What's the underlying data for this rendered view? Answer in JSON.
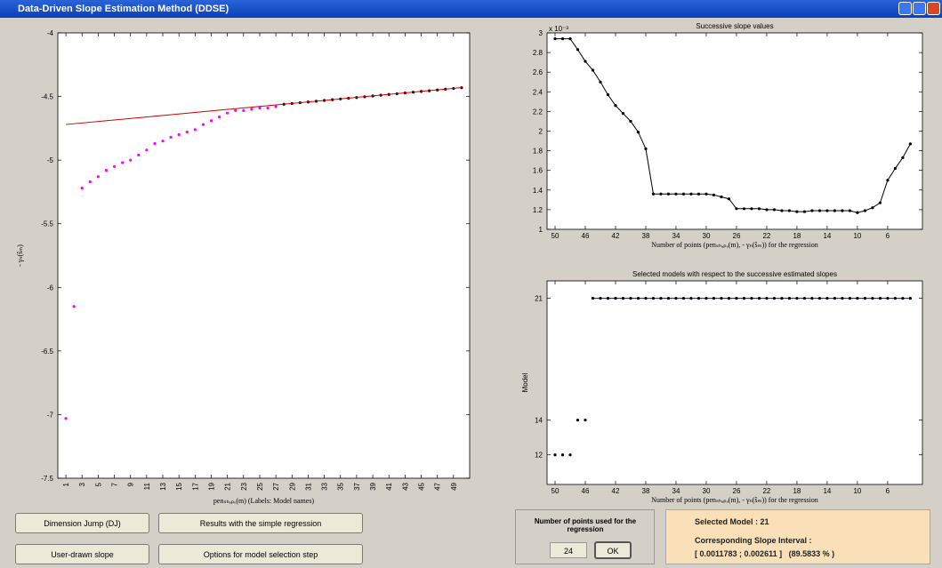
{
  "window": {
    "title": "Data-Driven Slope Estimation Method (DDSE)"
  },
  "buttons": [
    "Dimension Jump (DJ)",
    "Results with the simple regression",
    "User-drawn slope",
    "Options for model selection step"
  ],
  "regression_panel": {
    "label": "Number of points used for the regression",
    "input": "24",
    "button": "OK"
  },
  "result_panel": {
    "selected": "Selected Model : 21",
    "interval_label": "Corresponding Slope Interval :",
    "interval": "[ 0.0011783 ; 0.002611 ]   (89.5833 % )"
  },
  "chart_data": [
    {
      "type": "scatter",
      "xlabel": "penₛₕₐₚₑ(m) (Labels: Model names)",
      "ylabel": "- γₙ(ŝₘ)",
      "xlim": [
        0,
        51
      ],
      "ylim": [
        -7.5,
        -4
      ],
      "xticks": [
        1,
        3,
        5,
        7,
        9,
        11,
        13,
        15,
        17,
        19,
        21,
        23,
        25,
        27,
        29,
        31,
        33,
        35,
        37,
        39,
        41,
        43,
        45,
        47,
        49
      ],
      "yticks": [
        -7.5,
        -7,
        -6.5,
        -6,
        -5.5,
        -5,
        -4.5,
        -4
      ],
      "series": [
        {
          "color": "#ff00ff",
          "style": "markers",
          "x": [
            1,
            2,
            3,
            4,
            5,
            6,
            7,
            8,
            9,
            10,
            11,
            12,
            13,
            14,
            15,
            16,
            17,
            18,
            19,
            20,
            21,
            22,
            23,
            24,
            25,
            26,
            27
          ],
          "values": [
            -7.03,
            -6.15,
            -5.22,
            -5.17,
            -5.13,
            -5.08,
            -5.05,
            -5.02,
            -5.0,
            -4.96,
            -4.92,
            -4.87,
            -4.85,
            -4.82,
            -4.8,
            -4.78,
            -4.76,
            -4.72,
            -4.69,
            -4.66,
            -4.63,
            -4.61,
            -4.61,
            -4.6,
            -4.59,
            -4.59,
            -4.58
          ]
        },
        {
          "color": "#000000",
          "style": "markers",
          "x": [
            28,
            29,
            30,
            31,
            32,
            33,
            34,
            35,
            36,
            37,
            38,
            39,
            40,
            41,
            42,
            43,
            44,
            45,
            46,
            47,
            48,
            49,
            50
          ],
          "values": [
            -4.561,
            -4.555,
            -4.549,
            -4.543,
            -4.537,
            -4.531,
            -4.525,
            -4.519,
            -4.514,
            -4.508,
            -4.502,
            -4.496,
            -4.49,
            -4.484,
            -4.478,
            -4.472,
            -4.466,
            -4.46,
            -4.455,
            -4.449,
            -4.443,
            -4.437,
            -4.431
          ]
        },
        {
          "color": "#cc0000",
          "style": "line",
          "x": [
            1,
            50
          ],
          "values": [
            -4.72,
            -4.43
          ]
        }
      ]
    },
    {
      "type": "line",
      "title": "Successive slope values",
      "xlabel": "Number of points (penₛₕₐₚₑ(m), - γₙ(ŝₘ)) for the regression",
      "y_exponent_label": "x 10⁻³",
      "xlim": [
        51.06,
        1.4
      ],
      "ylim": [
        1,
        3
      ],
      "xticks": [
        50,
        46,
        42,
        38,
        34,
        30,
        26,
        22,
        18,
        14,
        10,
        6
      ],
      "yticks": [
        1,
        1.2,
        1.4,
        1.6,
        1.8,
        2,
        2.2,
        2.4,
        2.6,
        2.8,
        3
      ],
      "series": [
        {
          "color": "#000000",
          "style": "line+markers",
          "x": [
            50,
            49,
            48,
            47,
            46,
            45,
            44,
            43,
            42,
            41,
            40,
            39,
            38,
            37,
            36,
            35,
            34,
            33,
            32,
            31,
            30,
            29,
            28,
            27,
            26,
            25,
            24,
            23,
            22,
            21,
            20,
            19,
            18,
            17,
            16,
            15,
            14,
            13,
            12,
            11,
            10,
            9,
            8,
            7,
            6,
            5,
            4,
            3
          ],
          "values": [
            2.94,
            2.94,
            2.94,
            2.83,
            2.71,
            2.62,
            2.5,
            2.37,
            2.26,
            2.18,
            2.1,
            1.99,
            1.82,
            1.36,
            1.36,
            1.36,
            1.36,
            1.36,
            1.36,
            1.36,
            1.36,
            1.35,
            1.33,
            1.31,
            1.21,
            1.21,
            1.21,
            1.21,
            1.2,
            1.2,
            1.19,
            1.19,
            1.18,
            1.18,
            1.19,
            1.19,
            1.19,
            1.19,
            1.19,
            1.19,
            1.17,
            1.19,
            1.22,
            1.27,
            1.5,
            1.62,
            1.73,
            1.87
          ]
        }
      ]
    },
    {
      "type": "line",
      "title": "Selected models with respect to the successive estimated slopes",
      "xlabel": "Number of points (penₛₕₐₚₑ(m), - γₙ(ŝₘ)) for the regression",
      "ylabel": "Model",
      "xlim": [
        51.06,
        1.4
      ],
      "ylim": [
        10.3,
        22
      ],
      "xticks": [
        50,
        46,
        42,
        38,
        34,
        30,
        26,
        22,
        18,
        14,
        10,
        6
      ],
      "yticks": [
        12,
        14,
        21
      ],
      "series": [
        {
          "color": "#000000",
          "style": "markers",
          "x": [
            50,
            49,
            48,
            47,
            46
          ],
          "values": [
            12,
            12,
            12,
            14,
            14
          ]
        },
        {
          "color": "#0000ff",
          "marker_color": "#000000",
          "style": "line+markers",
          "x": [
            45,
            44,
            43,
            42,
            41,
            40,
            39,
            38,
            37,
            36,
            35,
            34,
            33,
            32,
            31,
            30,
            29,
            28,
            27,
            26,
            25,
            24,
            23,
            22,
            21,
            20,
            19,
            18,
            17,
            16,
            15,
            14,
            13,
            12,
            11,
            10,
            9,
            8,
            7,
            6,
            5,
            4,
            3
          ],
          "values": [
            21,
            21,
            21,
            21,
            21,
            21,
            21,
            21,
            21,
            21,
            21,
            21,
            21,
            21,
            21,
            21,
            21,
            21,
            21,
            21,
            21,
            21,
            21,
            21,
            21,
            21,
            21,
            21,
            21,
            21,
            21,
            21,
            21,
            21,
            21,
            21,
            21,
            21,
            21,
            21,
            21,
            21,
            21
          ]
        }
      ]
    }
  ]
}
